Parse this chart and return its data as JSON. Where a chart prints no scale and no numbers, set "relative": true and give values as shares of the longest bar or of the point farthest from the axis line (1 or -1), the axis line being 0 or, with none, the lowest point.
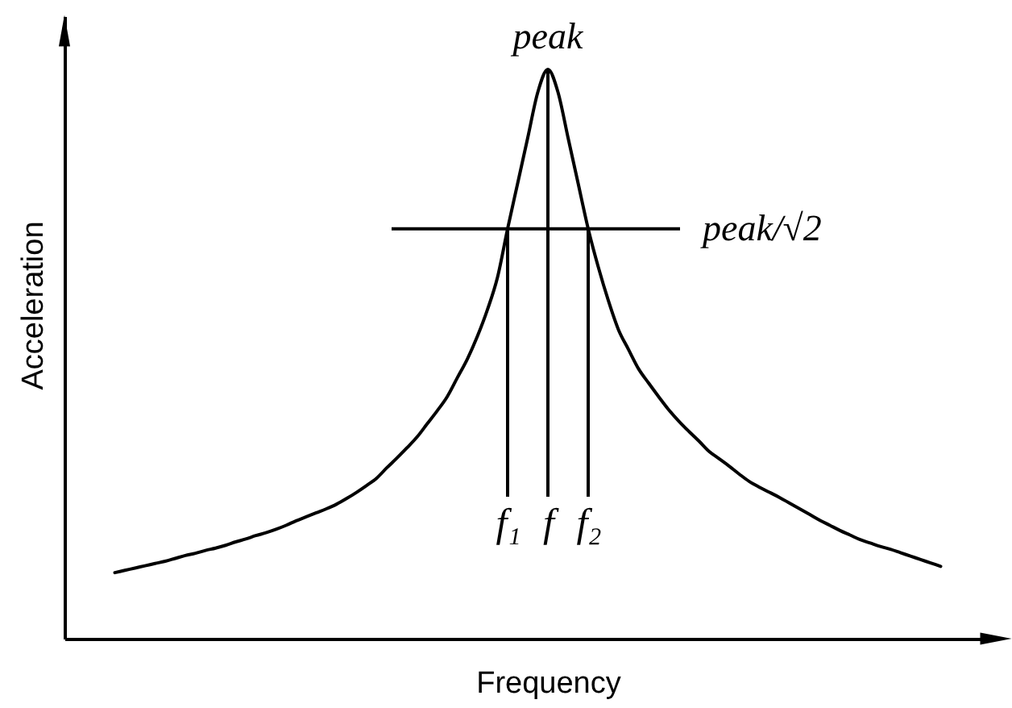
{
  "chart_data": {
    "type": "line",
    "relative": true,
    "xlabel": "Frequency",
    "ylabel": "Acceleration",
    "color": "#000000",
    "categories": [
      null,
      null,
      null,
      null,
      null,
      null,
      null,
      null,
      null,
      null,
      null,
      null,
      null,
      null,
      null,
      null,
      null,
      null,
      null,
      null,
      null,
      null,
      null,
      null,
      null,
      null,
      null,
      null,
      null,
      null,
      null,
      null,
      null,
      null,
      null,
      null,
      null,
      null,
      null,
      "f₁",
      null,
      null,
      null,
      "f",
      null,
      null,
      null,
      "f₂",
      null,
      null,
      null,
      null,
      null,
      null,
      null,
      null,
      null,
      null,
      null,
      null,
      null,
      null,
      null,
      null,
      null,
      null,
      null,
      null,
      null,
      null,
      null,
      null,
      null,
      null,
      null,
      null,
      null,
      null,
      null,
      null,
      null,
      null,
      null
    ],
    "values": [
      0.116,
      0.12,
      0.124,
      0.128,
      0.132,
      0.136,
      0.141,
      0.146,
      0.15,
      0.155,
      0.159,
      0.164,
      0.17,
      0.175,
      0.181,
      0.186,
      0.192,
      0.199,
      0.207,
      0.214,
      0.221,
      0.228,
      0.236,
      0.246,
      0.257,
      0.269,
      0.282,
      0.3,
      0.317,
      0.335,
      0.354,
      0.377,
      0.4,
      0.425,
      0.458,
      0.491,
      0.531,
      0.578,
      0.635,
      0.72,
      0.8,
      0.88,
      0.96,
      1,
      0.96,
      0.88,
      0.8,
      0.72,
      0.653,
      0.594,
      0.543,
      0.508,
      0.474,
      0.449,
      0.425,
      0.402,
      0.382,
      0.364,
      0.347,
      0.329,
      0.316,
      0.303,
      0.289,
      0.276,
      0.266,
      0.257,
      0.248,
      0.238,
      0.228,
      0.218,
      0.208,
      0.199,
      0.19,
      0.182,
      0.174,
      0.168,
      0.162,
      0.157,
      0.151,
      0.145,
      0.139,
      0.133,
      0.127
    ],
    "ref_lines": [
      {
        "axis": "y",
        "value": 0.72,
        "label": "peak/√2"
      },
      {
        "axis": "x",
        "value": "f₁"
      },
      {
        "axis": "x",
        "value": "f"
      },
      {
        "axis": "x",
        "value": "f₂"
      }
    ],
    "annotations": [
      {
        "text": "peak",
        "y": 1
      }
    ]
  }
}
